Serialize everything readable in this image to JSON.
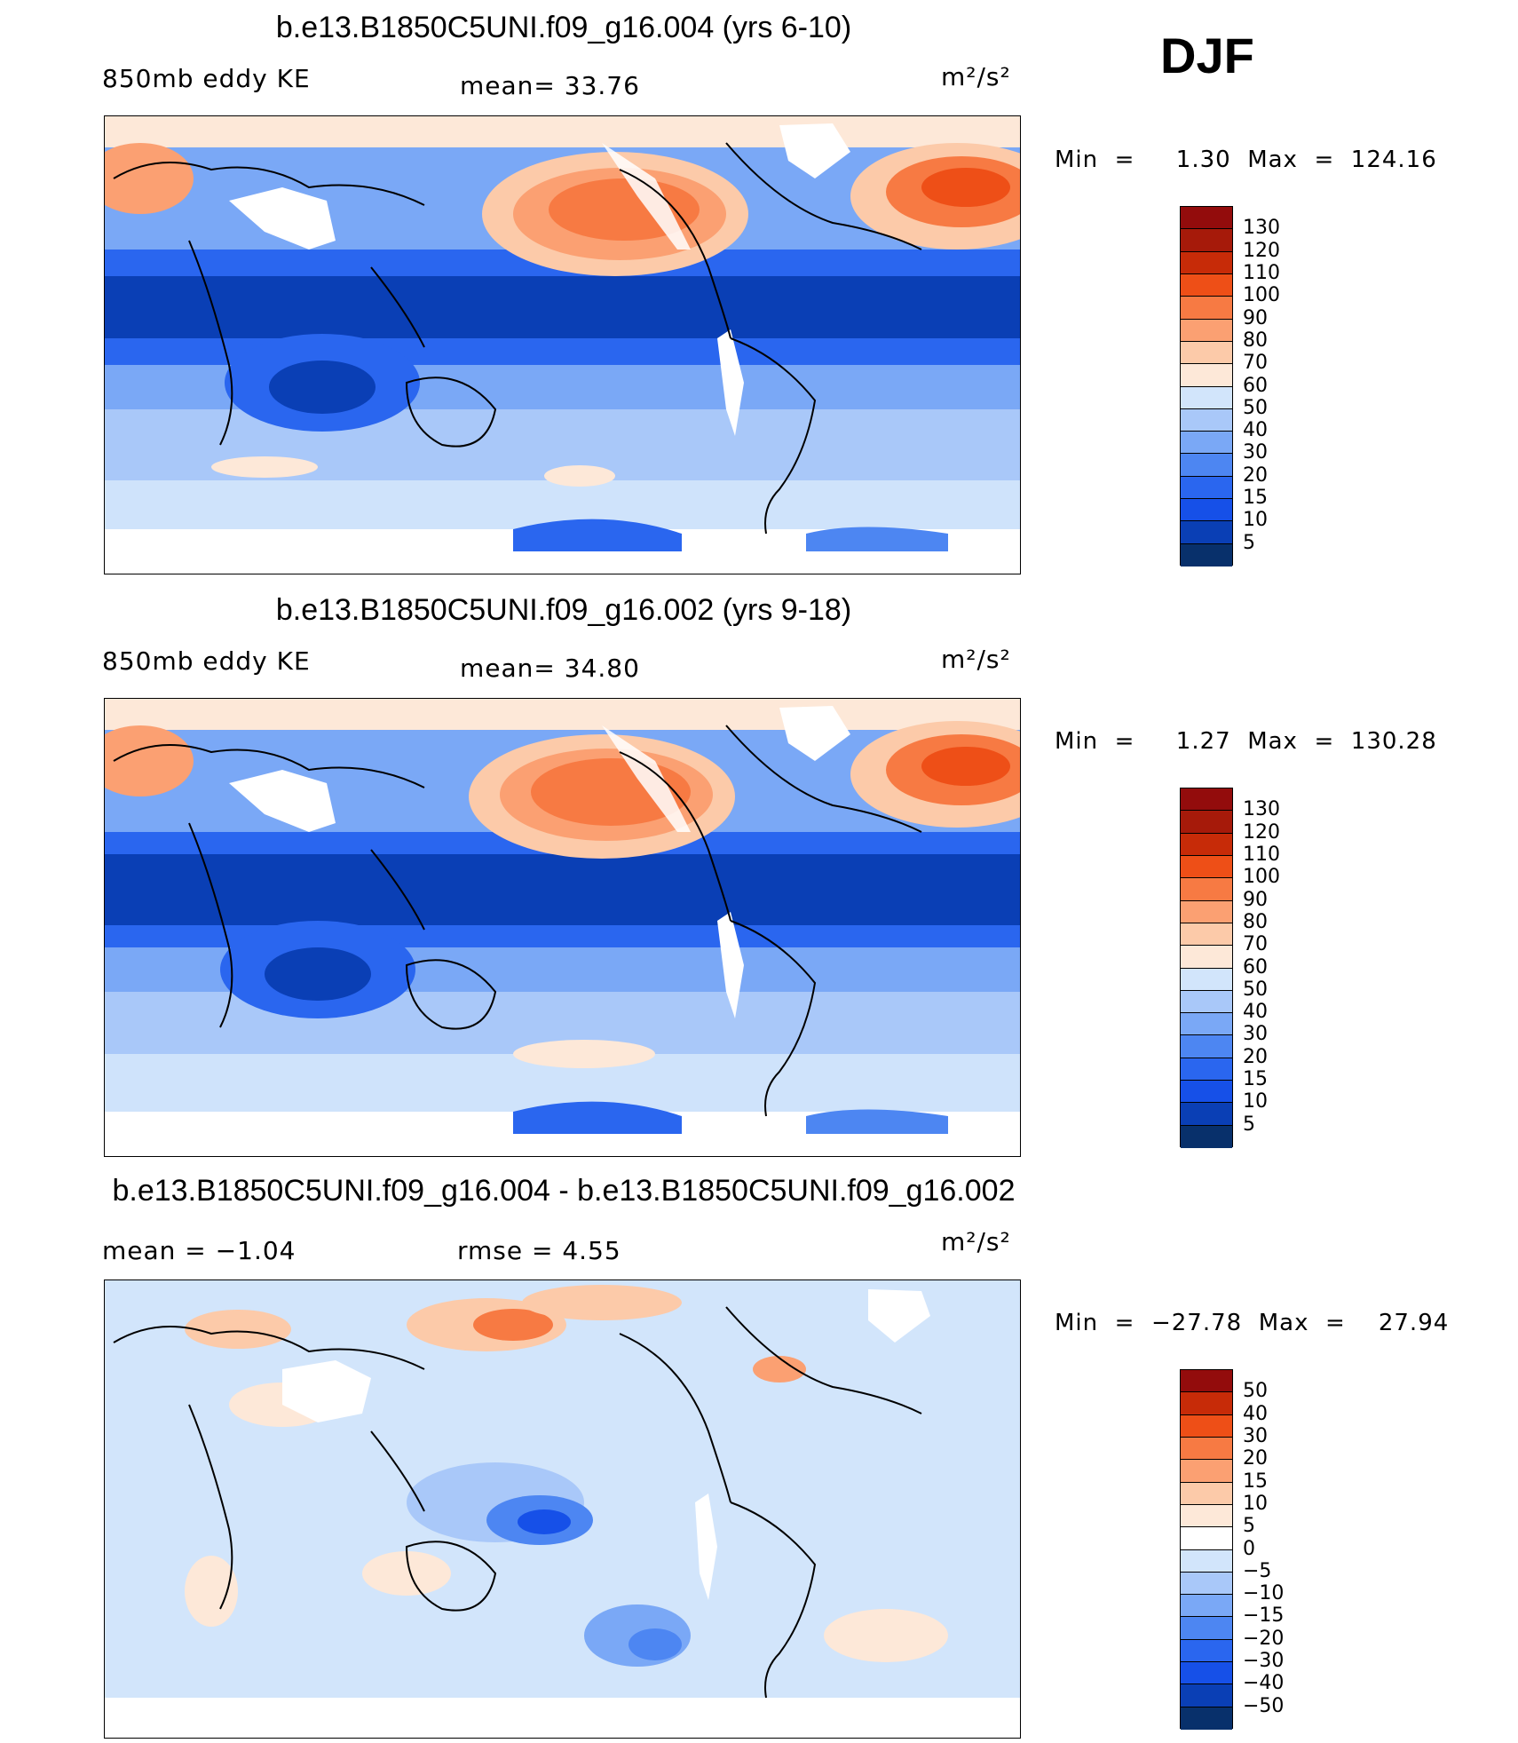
{
  "season": "DJF",
  "colors": {
    "levels13": [
      "#08306b",
      "#0a3fb5",
      "#1650e8",
      "#2a66ef",
      "#4d86f2",
      "#7aa8f6",
      "#a9c8f9",
      "#d2e5fb",
      "#fde8d8",
      "#fccaa9",
      "#fba072",
      "#f77a43",
      "#ee4f17",
      "#c72b08",
      "#930c0c"
    ],
    "diff": [
      "#08306b",
      "#0a3fb5",
      "#1650e8",
      "#2a66ef",
      "#4d86f2",
      "#7aa8f6",
      "#a9c8f9",
      "#d2e5fb",
      "#ffffff",
      "#fde8d8",
      "#fccaa9",
      "#fba072",
      "#f77a43",
      "#ee4f17",
      "#c72b08",
      "#930c0c"
    ]
  },
  "panels": [
    {
      "title": "b.e13.B1850C5UNI.f09_g16.004 (yrs 6-10)",
      "left_label": "850mb eddy KE",
      "center_label": "mean=   33.76",
      "units": "m²/s²",
      "minmax": "Min  =     1.30  Max  =  124.16",
      "colorbar_labels": [
        "130",
        "120",
        "110",
        "100",
        "90",
        "80",
        "70",
        "60",
        "50",
        "40",
        "30",
        "20",
        "15",
        "10",
        "5"
      ]
    },
    {
      "title": "b.e13.B1850C5UNI.f09_g16.002 (yrs 9-18)",
      "left_label": "850mb eddy KE",
      "center_label": "mean=   34.80",
      "units": "m²/s²",
      "minmax": "Min  =     1.27  Max  =  130.28",
      "colorbar_labels": [
        "130",
        "120",
        "110",
        "100",
        "90",
        "80",
        "70",
        "60",
        "50",
        "40",
        "30",
        "20",
        "15",
        "10",
        "5"
      ]
    },
    {
      "title": "b.e13.B1850C5UNI.f09_g16.004 - b.e13.B1850C5UNI.f09_g16.002",
      "left_label": "mean  =   −1.04",
      "center_label": "rmse  =     4.55",
      "units": "m²/s²",
      "minmax": "Min  =  −27.78  Max  =    27.94",
      "colorbar_labels": [
        "50",
        "40",
        "30",
        "20",
        "15",
        "10",
        "5",
        "0",
        "−5",
        "−10",
        "−15",
        "−20",
        "−30",
        "−40",
        "−50"
      ]
    }
  ]
}
